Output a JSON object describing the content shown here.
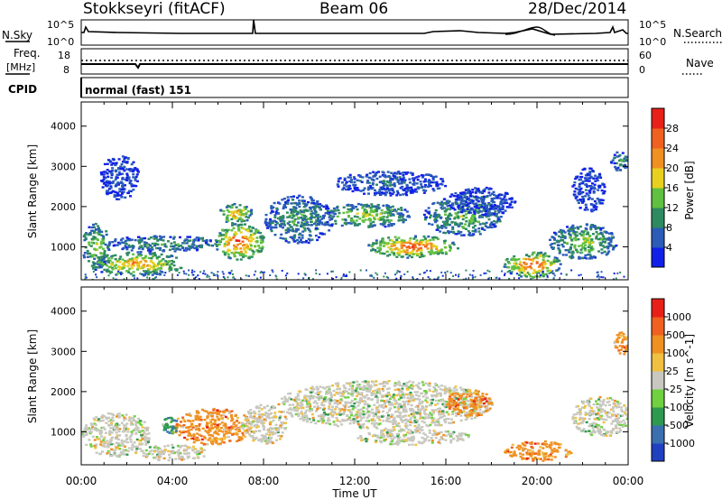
{
  "header": {
    "station": "Stokkseyri (fitACF)",
    "beam": "Beam 06",
    "date": "28/Dec/2014"
  },
  "labels": {
    "nsky": "N.Sky",
    "nsky_ticks": [
      "10^5",
      "10^0"
    ],
    "nsearch": "N.Search",
    "nsearch_ticks": [
      "10^5",
      "10^0"
    ],
    "freq": "Freq.",
    "freq_unit": "[MHz]",
    "freq_ticks": [
      "18",
      "8"
    ],
    "nave": "Nave",
    "nave_ticks": [
      "60",
      "0"
    ],
    "cpid": "CPID",
    "cpid_value": "normal (fast) 151",
    "slant_range": "Slant Range [km]",
    "x_axis": "Time UT"
  },
  "chart_data": [
    {
      "type": "line",
      "panel": "N.Sky / N.Search",
      "x": [
        "00:00",
        "04:00",
        "08:00",
        "12:00",
        "16:00",
        "20:00",
        "00:00"
      ],
      "y_scale": "log",
      "ylim": [
        1,
        100000
      ]
    },
    {
      "type": "line",
      "panel": "Freq. / Nave",
      "x": [
        "00:00",
        "04:00",
        "08:00",
        "12:00",
        "16:00",
        "20:00",
        "00:00"
      ],
      "ylim_left": [
        8,
        18
      ],
      "ylim_right": [
        0,
        60
      ]
    },
    {
      "type": "heatmap",
      "panel": "Power",
      "xlabel": "Time UT",
      "ylabel": "Slant Range [km]",
      "x_ticks": [
        "00:00",
        "04:00",
        "08:00",
        "12:00",
        "16:00",
        "20:00",
        "00:00"
      ],
      "y_ticks": [
        1000,
        2000,
        3000,
        4000
      ],
      "xlim_hours": [
        0,
        24
      ],
      "ylim": [
        180,
        4600
      ],
      "colorbar": {
        "label": "Power [dB]",
        "ticks": [
          "4",
          "8",
          "12",
          "16",
          "20",
          "24",
          "28"
        ],
        "colors": [
          "#1020e8",
          "#2a5cb8",
          "#2e8a60",
          "#60c040",
          "#e8d020",
          "#f09020",
          "#f06020",
          "#e82018"
        ]
      },
      "regions": [
        {
          "t": [
            0.0,
            1.2
          ],
          "r": [
            450,
            1600
          ],
          "level": 0.55
        },
        {
          "t": [
            0.3,
            4.5
          ],
          "r": [
            300,
            900
          ],
          "level": 0.75
        },
        {
          "t": [
            1.0,
            6.0
          ],
          "r": [
            900,
            1300
          ],
          "level": 0.35
        },
        {
          "t": [
            0.8,
            2.5
          ],
          "r": [
            2200,
            3300
          ],
          "level": 0.1
        },
        {
          "t": [
            5.8,
            8.0
          ],
          "r": [
            700,
            1600
          ],
          "level": 0.95
        },
        {
          "t": [
            6.0,
            7.5
          ],
          "r": [
            1600,
            2100
          ],
          "level": 0.7
        },
        {
          "t": [
            8.0,
            11.0
          ],
          "r": [
            1100,
            2300
          ],
          "level": 0.35
        },
        {
          "t": [
            10.5,
            14.5
          ],
          "r": [
            1500,
            2100
          ],
          "level": 0.55
        },
        {
          "t": [
            12.5,
            16.5
          ],
          "r": [
            750,
            1300
          ],
          "level": 0.95
        },
        {
          "t": [
            11.0,
            16.0
          ],
          "r": [
            2300,
            2900
          ],
          "level": 0.2
        },
        {
          "t": [
            15.0,
            18.5
          ],
          "r": [
            1300,
            2300
          ],
          "level": 0.45
        },
        {
          "t": [
            16.0,
            19.0
          ],
          "r": [
            1800,
            2500
          ],
          "level": 0.15
        },
        {
          "t": [
            18.5,
            21.0
          ],
          "r": [
            250,
            900
          ],
          "level": 0.95
        },
        {
          "t": [
            20.5,
            23.5
          ],
          "r": [
            700,
            1600
          ],
          "level": 0.5
        },
        {
          "t": [
            21.5,
            23.0
          ],
          "r": [
            1900,
            3000
          ],
          "level": 0.15
        },
        {
          "t": [
            23.2,
            24.0
          ],
          "r": [
            2900,
            3400
          ],
          "level": 0.3
        }
      ]
    },
    {
      "type": "heatmap",
      "panel": "Velocity",
      "xlabel": "Time UT",
      "ylabel": "Slant Range [km]",
      "x_ticks": [
        "00:00",
        "04:00",
        "08:00",
        "12:00",
        "16:00",
        "20:00",
        "00:00"
      ],
      "y_ticks": [
        1000,
        2000,
        3000,
        4000
      ],
      "xlim_hours": [
        0,
        24
      ],
      "ylim": [
        180,
        4600
      ],
      "colorbar": {
        "label": "Velocity [m s^-1]",
        "ticks": [
          "1000",
          "500",
          "100",
          "25",
          "-25",
          "-100",
          "-500",
          "-1000"
        ],
        "colors": [
          "#2040c0",
          "#3a70b0",
          "#2e9a50",
          "#70d040",
          "#c8c8c0",
          "#f0c040",
          "#f09020",
          "#f06020",
          "#e82018"
        ]
      },
      "regions": [
        {
          "t": [
            0.0,
            3.0
          ],
          "r": [
            400,
            1500
          ],
          "level": 0.5
        },
        {
          "t": [
            2.5,
            5.5
          ],
          "r": [
            300,
            700
          ],
          "level": 0.45
        },
        {
          "t": [
            4.0,
            7.5
          ],
          "r": [
            700,
            1600
          ],
          "level": 0.8
        },
        {
          "t": [
            7.0,
            9.0
          ],
          "r": [
            700,
            1700
          ],
          "level": 0.55
        },
        {
          "t": [
            8.5,
            18.0
          ],
          "r": [
            1100,
            2300
          ],
          "level": 0.5
        },
        {
          "t": [
            12.0,
            17.0
          ],
          "r": [
            700,
            1100
          ],
          "level": 0.5
        },
        {
          "t": [
            16.0,
            18.0
          ],
          "r": [
            1400,
            2100
          ],
          "level": 0.85
        },
        {
          "t": [
            18.5,
            21.5
          ],
          "r": [
            300,
            800
          ],
          "level": 0.85
        },
        {
          "t": [
            21.5,
            24.0
          ],
          "r": [
            900,
            1900
          ],
          "level": 0.5
        },
        {
          "t": [
            23.3,
            24.0
          ],
          "r": [
            2900,
            3500
          ],
          "level": 0.85
        },
        {
          "t": [
            3.5,
            4.2
          ],
          "r": [
            900,
            1400
          ],
          "level": 0.1
        }
      ]
    }
  ]
}
